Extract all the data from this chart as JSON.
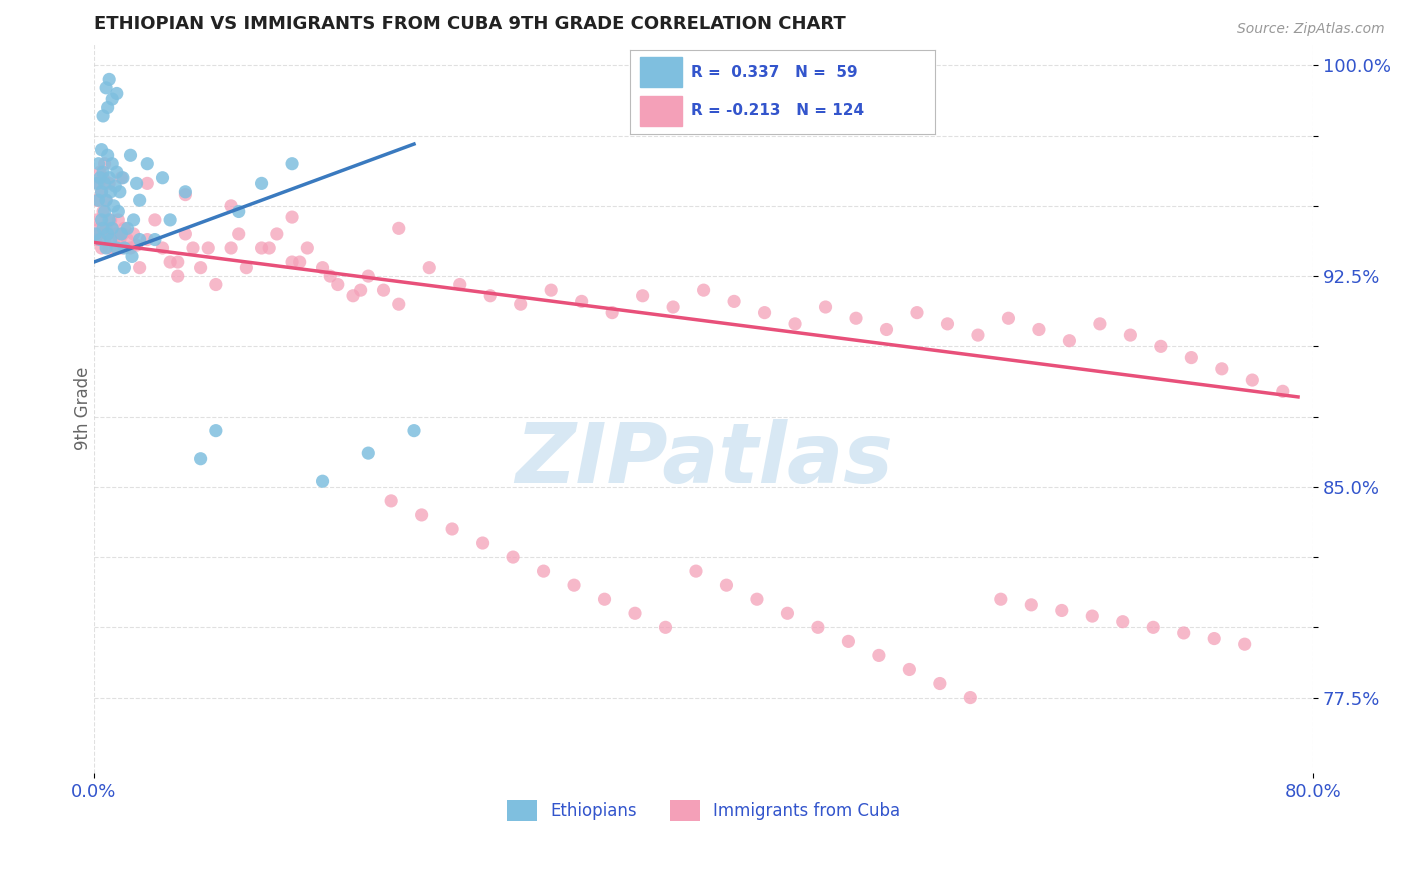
{
  "title": "ETHIOPIAN VS IMMIGRANTS FROM CUBA 9TH GRADE CORRELATION CHART",
  "source": "Source: ZipAtlas.com",
  "ylabel": "9th Grade",
  "xlim": [
    0.0,
    0.8
  ],
  "ylim": [
    0.748,
    1.008
  ],
  "blue_color": "#7fbfdf",
  "pink_color": "#f4a0b8",
  "blue_line_color": "#3a7abf",
  "pink_line_color": "#e8507a",
  "axis_color": "#3355cc",
  "grid_color": "#cccccc",
  "watermark_color": "#c8dff0",
  "blue_scatter_x": [
    0.001,
    0.002,
    0.003,
    0.003,
    0.004,
    0.004,
    0.005,
    0.005,
    0.005,
    0.006,
    0.006,
    0.007,
    0.007,
    0.008,
    0.008,
    0.009,
    0.009,
    0.01,
    0.01,
    0.011,
    0.011,
    0.012,
    0.012,
    0.013,
    0.014,
    0.015,
    0.015,
    0.016,
    0.017,
    0.018,
    0.019,
    0.02,
    0.022,
    0.024,
    0.026,
    0.028,
    0.03,
    0.035,
    0.04,
    0.045,
    0.05,
    0.06,
    0.07,
    0.08,
    0.095,
    0.11,
    0.13,
    0.15,
    0.18,
    0.21,
    0.02,
    0.025,
    0.03,
    0.01,
    0.008,
    0.015,
    0.012,
    0.009,
    0.006
  ],
  "blue_scatter_y": [
    0.94,
    0.958,
    0.952,
    0.965,
    0.938,
    0.96,
    0.945,
    0.955,
    0.97,
    0.942,
    0.962,
    0.948,
    0.958,
    0.935,
    0.952,
    0.94,
    0.968,
    0.945,
    0.96,
    0.938,
    0.955,
    0.942,
    0.965,
    0.95,
    0.957,
    0.962,
    0.935,
    0.948,
    0.955,
    0.94,
    0.96,
    0.935,
    0.942,
    0.968,
    0.945,
    0.958,
    0.952,
    0.965,
    0.938,
    0.96,
    0.945,
    0.955,
    0.86,
    0.87,
    0.948,
    0.958,
    0.965,
    0.852,
    0.862,
    0.87,
    0.928,
    0.932,
    0.938,
    0.995,
    0.992,
    0.99,
    0.988,
    0.985,
    0.982
  ],
  "pink_scatter_x": [
    0.001,
    0.002,
    0.002,
    0.003,
    0.003,
    0.004,
    0.004,
    0.005,
    0.005,
    0.006,
    0.006,
    0.007,
    0.007,
    0.008,
    0.008,
    0.009,
    0.01,
    0.01,
    0.011,
    0.012,
    0.013,
    0.014,
    0.015,
    0.016,
    0.017,
    0.018,
    0.019,
    0.02,
    0.022,
    0.024,
    0.026,
    0.028,
    0.03,
    0.035,
    0.04,
    0.045,
    0.05,
    0.055,
    0.06,
    0.065,
    0.07,
    0.08,
    0.09,
    0.1,
    0.11,
    0.12,
    0.13,
    0.14,
    0.15,
    0.16,
    0.17,
    0.18,
    0.19,
    0.2,
    0.22,
    0.24,
    0.26,
    0.28,
    0.3,
    0.32,
    0.34,
    0.36,
    0.38,
    0.4,
    0.42,
    0.44,
    0.46,
    0.48,
    0.5,
    0.52,
    0.54,
    0.56,
    0.58,
    0.6,
    0.62,
    0.64,
    0.66,
    0.68,
    0.7,
    0.72,
    0.74,
    0.76,
    0.78,
    0.055,
    0.075,
    0.095,
    0.115,
    0.135,
    0.155,
    0.175,
    0.195,
    0.215,
    0.235,
    0.255,
    0.275,
    0.295,
    0.315,
    0.335,
    0.355,
    0.375,
    0.395,
    0.415,
    0.435,
    0.455,
    0.475,
    0.495,
    0.515,
    0.535,
    0.555,
    0.575,
    0.595,
    0.615,
    0.635,
    0.655,
    0.675,
    0.695,
    0.715,
    0.735,
    0.755,
    0.018,
    0.035,
    0.06,
    0.09,
    0.13,
    0.2
  ],
  "pink_scatter_y": [
    0.938,
    0.945,
    0.952,
    0.94,
    0.958,
    0.942,
    0.962,
    0.935,
    0.955,
    0.948,
    0.96,
    0.938,
    0.965,
    0.942,
    0.952,
    0.94,
    0.935,
    0.958,
    0.945,
    0.942,
    0.938,
    0.935,
    0.94,
    0.945,
    0.938,
    0.935,
    0.94,
    0.942,
    0.938,
    0.935,
    0.94,
    0.936,
    0.928,
    0.938,
    0.945,
    0.935,
    0.93,
    0.925,
    0.94,
    0.935,
    0.928,
    0.922,
    0.935,
    0.928,
    0.935,
    0.94,
    0.93,
    0.935,
    0.928,
    0.922,
    0.918,
    0.925,
    0.92,
    0.915,
    0.928,
    0.922,
    0.918,
    0.915,
    0.92,
    0.916,
    0.912,
    0.918,
    0.914,
    0.92,
    0.916,
    0.912,
    0.908,
    0.914,
    0.91,
    0.906,
    0.912,
    0.908,
    0.904,
    0.91,
    0.906,
    0.902,
    0.908,
    0.904,
    0.9,
    0.896,
    0.892,
    0.888,
    0.884,
    0.93,
    0.935,
    0.94,
    0.935,
    0.93,
    0.925,
    0.92,
    0.845,
    0.84,
    0.835,
    0.83,
    0.825,
    0.82,
    0.815,
    0.81,
    0.805,
    0.8,
    0.82,
    0.815,
    0.81,
    0.805,
    0.8,
    0.795,
    0.79,
    0.785,
    0.78,
    0.775,
    0.81,
    0.808,
    0.806,
    0.804,
    0.802,
    0.8,
    0.798,
    0.796,
    0.794,
    0.96,
    0.958,
    0.954,
    0.95,
    0.946,
    0.942
  ],
  "blue_trendline_x": [
    0.0,
    0.21
  ],
  "blue_trendline_y": [
    0.93,
    0.972
  ],
  "pink_trendline_x": [
    0.0,
    0.79
  ],
  "pink_trendline_y": [
    0.937,
    0.882
  ]
}
